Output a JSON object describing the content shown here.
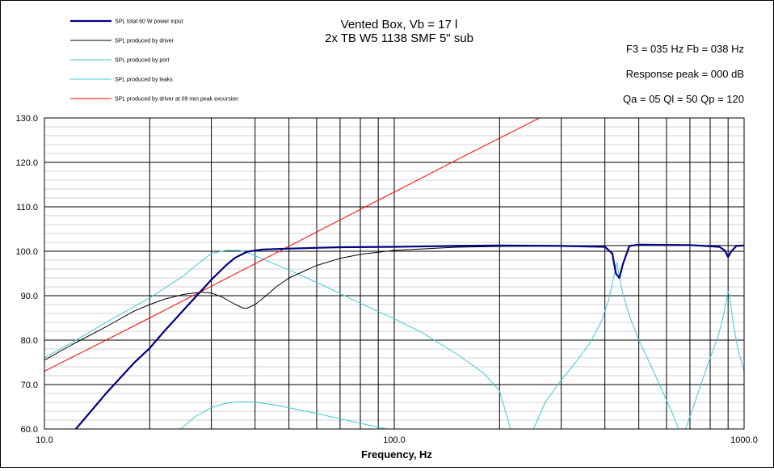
{
  "chart_data": {
    "type": "line",
    "title_line1": "Vented Box, Vb = 17 l",
    "title_line2": "2x TB W5 1138 SMF 5\" sub",
    "xlabel": "Frequency, Hz",
    "ylabel": "",
    "x_scale": "log",
    "xlim": [
      10,
      1000
    ],
    "ylim": [
      60,
      130
    ],
    "x_tick_labels": [
      "10.0",
      "100.0",
      "1000.0"
    ],
    "y_tick_labels": [
      "60.0",
      "70.0",
      "80.0",
      "90.0",
      "100.0",
      "110.0",
      "120.0",
      "130.0"
    ],
    "grid": true,
    "legend_position": "top-left",
    "info": {
      "line1": "F3 = 035  Hz   Fb = 038  Hz",
      "line2": "Response peak = 000  dB",
      "line3": "Qa = 05   Ql = 50   Qp = 120"
    },
    "series": [
      {
        "name": "SPL total 60 W power input",
        "color": "#000080",
        "width": 2.2,
        "x": [
          12.3,
          15,
          18,
          20,
          22,
          25,
          28,
          30,
          33,
          35,
          38,
          42,
          50,
          70,
          100,
          150,
          200,
          300,
          400,
          420,
          430,
          440,
          450,
          470,
          500,
          700,
          850,
          880,
          900,
          920,
          950,
          1000
        ],
        "y": [
          60,
          68,
          74.8,
          78.2,
          82,
          86.8,
          91,
          93.6,
          96.8,
          98.5,
          99.9,
          100.4,
          100.6,
          100.9,
          101,
          101.2,
          101.3,
          101.2,
          101,
          99.5,
          95,
          94,
          97,
          101.2,
          101.5,
          101.4,
          101,
          100.2,
          98.7,
          100,
          101.2,
          101.3
        ]
      },
      {
        "name": "SPL produced by driver",
        "color": "#000000",
        "width": 1,
        "x": [
          10,
          12,
          15,
          18,
          20,
          22,
          25,
          28,
          30,
          32,
          35,
          37,
          38,
          40,
          43,
          46,
          50,
          60,
          70,
          80,
          100,
          150,
          200,
          300,
          500,
          700,
          1000
        ],
        "y": [
          75.5,
          79,
          83,
          86.5,
          88,
          89.2,
          90.3,
          90.8,
          90.6,
          89.8,
          88.1,
          87.2,
          87.2,
          88,
          90,
          92,
          94,
          96.8,
          98.4,
          99.3,
          100.2,
          100.9,
          101.1,
          101.2,
          101.3,
          101.3,
          101.3
        ]
      },
      {
        "name": "SPL produced by port",
        "color": "#40c8d8",
        "width": 1,
        "x": [
          10,
          12,
          15,
          20,
          25,
          28,
          30,
          33,
          36,
          38,
          40,
          45,
          50,
          60,
          70,
          80,
          100,
          120,
          150,
          180,
          200,
          215
        ],
        "y": [
          76,
          79.5,
          84,
          89.5,
          94.5,
          97.7,
          99.5,
          100.2,
          100.2,
          99.7,
          99,
          97.3,
          95.8,
          93,
          90.5,
          88.3,
          84.8,
          81.7,
          77,
          72.6,
          68.6,
          60
        ]
      },
      {
        "name": "SPL produced by leaks",
        "color": "#40c8d8",
        "width": 1,
        "x": [
          24.5,
          27,
          30,
          33,
          36,
          38,
          40,
          45,
          50,
          60,
          70,
          80,
          95
        ],
        "y": [
          60,
          62.8,
          64.8,
          65.8,
          66.1,
          66.1,
          66.0,
          65.5,
          64.8,
          63.5,
          62.3,
          61.3,
          60
        ]
      },
      {
        "name": "",
        "color": "#40c8d8",
        "width": 1,
        "x": [
          250,
          270,
          300,
          330,
          360,
          390,
          410,
          425,
          433,
          440,
          450,
          470,
          500,
          540,
          580,
          620,
          650
        ],
        "y": [
          60,
          66,
          71,
          75,
          79,
          84,
          89,
          94.5,
          97.5,
          94,
          90.5,
          85.5,
          80,
          74.5,
          69,
          64,
          60
        ]
      },
      {
        "name": "",
        "color": "#40c8d8",
        "width": 1,
        "x": [
          680,
          720,
          760,
          800,
          840,
          870,
          890,
          900,
          910,
          930,
          960,
          1000
        ],
        "y": [
          60,
          65.5,
          71,
          76,
          80.5,
          85,
          89,
          91,
          89.5,
          84,
          78,
          73
        ]
      },
      {
        "name": "SPL produced by driver at 09 mm peak excursion",
        "color": "#ff0000",
        "width": 1,
        "x": [
          10,
          20,
          40,
          80,
          160,
          260
        ],
        "y": [
          73,
          85,
          97.2,
          109.4,
          121.6,
          130
        ]
      }
    ]
  }
}
